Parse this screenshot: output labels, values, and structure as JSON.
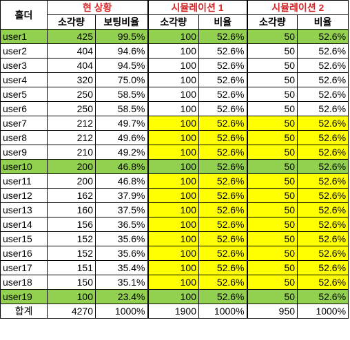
{
  "headers": {
    "holder": "홀더",
    "group_current": "현 상황",
    "group_sim1": "시뮬레이션 1",
    "group_sim2": "시뮬레이션 2",
    "current_amount": "소각량",
    "current_ratio": "보팅비율",
    "sim1_amount": "소각량",
    "sim1_ratio": "비율",
    "sim2_amount": "소각량",
    "sim2_ratio": "비율"
  },
  "colors": {
    "highlight_row": "#92d050",
    "simulation_fill": "#ffff00",
    "group_header_text": "#d62728"
  },
  "rows": [
    {
      "user": "user1",
      "amount": "425",
      "ratio": "99.5%",
      "sim1_amount": "100",
      "sim1_ratio": "52.6%",
      "sim2_amount": "50",
      "sim2_ratio": "52.6%"
    },
    {
      "user": "user2",
      "amount": "404",
      "ratio": "94.6%",
      "sim1_amount": "100",
      "sim1_ratio": "52.6%",
      "sim2_amount": "50",
      "sim2_ratio": "52.6%"
    },
    {
      "user": "user3",
      "amount": "404",
      "ratio": "94.5%",
      "sim1_amount": "100",
      "sim1_ratio": "52.6%",
      "sim2_amount": "50",
      "sim2_ratio": "52.6%"
    },
    {
      "user": "user4",
      "amount": "320",
      "ratio": "75.0%",
      "sim1_amount": "100",
      "sim1_ratio": "52.6%",
      "sim2_amount": "50",
      "sim2_ratio": "52.6%"
    },
    {
      "user": "user5",
      "amount": "250",
      "ratio": "58.5%",
      "sim1_amount": "100",
      "sim1_ratio": "52.6%",
      "sim2_amount": "50",
      "sim2_ratio": "52.6%"
    },
    {
      "user": "user6",
      "amount": "250",
      "ratio": "58.5%",
      "sim1_amount": "100",
      "sim1_ratio": "52.6%",
      "sim2_amount": "50",
      "sim2_ratio": "52.6%"
    },
    {
      "user": "user7",
      "amount": "212",
      "ratio": "49.7%",
      "sim1_amount": "100",
      "sim1_ratio": "52.6%",
      "sim2_amount": "50",
      "sim2_ratio": "52.6%"
    },
    {
      "user": "user8",
      "amount": "212",
      "ratio": "49.6%",
      "sim1_amount": "100",
      "sim1_ratio": "52.6%",
      "sim2_amount": "50",
      "sim2_ratio": "52.6%"
    },
    {
      "user": "user9",
      "amount": "210",
      "ratio": "49.2%",
      "sim1_amount": "100",
      "sim1_ratio": "52.6%",
      "sim2_amount": "50",
      "sim2_ratio": "52.6%"
    },
    {
      "user": "user10",
      "amount": "200",
      "ratio": "46.8%",
      "sim1_amount": "100",
      "sim1_ratio": "52.6%",
      "sim2_amount": "50",
      "sim2_ratio": "52.6%"
    },
    {
      "user": "user11",
      "amount": "200",
      "ratio": "46.8%",
      "sim1_amount": "100",
      "sim1_ratio": "52.6%",
      "sim2_amount": "50",
      "sim2_ratio": "52.6%"
    },
    {
      "user": "user12",
      "amount": "162",
      "ratio": "37.9%",
      "sim1_amount": "100",
      "sim1_ratio": "52.6%",
      "sim2_amount": "50",
      "sim2_ratio": "52.6%"
    },
    {
      "user": "user13",
      "amount": "160",
      "ratio": "37.5%",
      "sim1_amount": "100",
      "sim1_ratio": "52.6%",
      "sim2_amount": "50",
      "sim2_ratio": "52.6%"
    },
    {
      "user": "user14",
      "amount": "156",
      "ratio": "36.5%",
      "sim1_amount": "100",
      "sim1_ratio": "52.6%",
      "sim2_amount": "50",
      "sim2_ratio": "52.6%"
    },
    {
      "user": "user15",
      "amount": "152",
      "ratio": "35.6%",
      "sim1_amount": "100",
      "sim1_ratio": "52.6%",
      "sim2_amount": "50",
      "sim2_ratio": "52.6%"
    },
    {
      "user": "user16",
      "amount": "152",
      "ratio": "35.6%",
      "sim1_amount": "100",
      "sim1_ratio": "52.6%",
      "sim2_amount": "50",
      "sim2_ratio": "52.6%"
    },
    {
      "user": "user17",
      "amount": "151",
      "ratio": "35.4%",
      "sim1_amount": "100",
      "sim1_ratio": "52.6%",
      "sim2_amount": "50",
      "sim2_ratio": "52.6%"
    },
    {
      "user": "user18",
      "amount": "150",
      "ratio": "35.1%",
      "sim1_amount": "100",
      "sim1_ratio": "52.6%",
      "sim2_amount": "50",
      "sim2_ratio": "52.6%"
    },
    {
      "user": "user19",
      "amount": "100",
      "ratio": "23.4%",
      "sim1_amount": "100",
      "sim1_ratio": "52.6%",
      "sim2_amount": "50",
      "sim2_ratio": "52.6%"
    }
  ],
  "total": {
    "label": "합계",
    "amount": "4270",
    "ratio": "1000%",
    "sim1_amount": "1900",
    "sim1_ratio": "1000%",
    "sim2_amount": "950",
    "sim2_ratio": "1000%"
  }
}
